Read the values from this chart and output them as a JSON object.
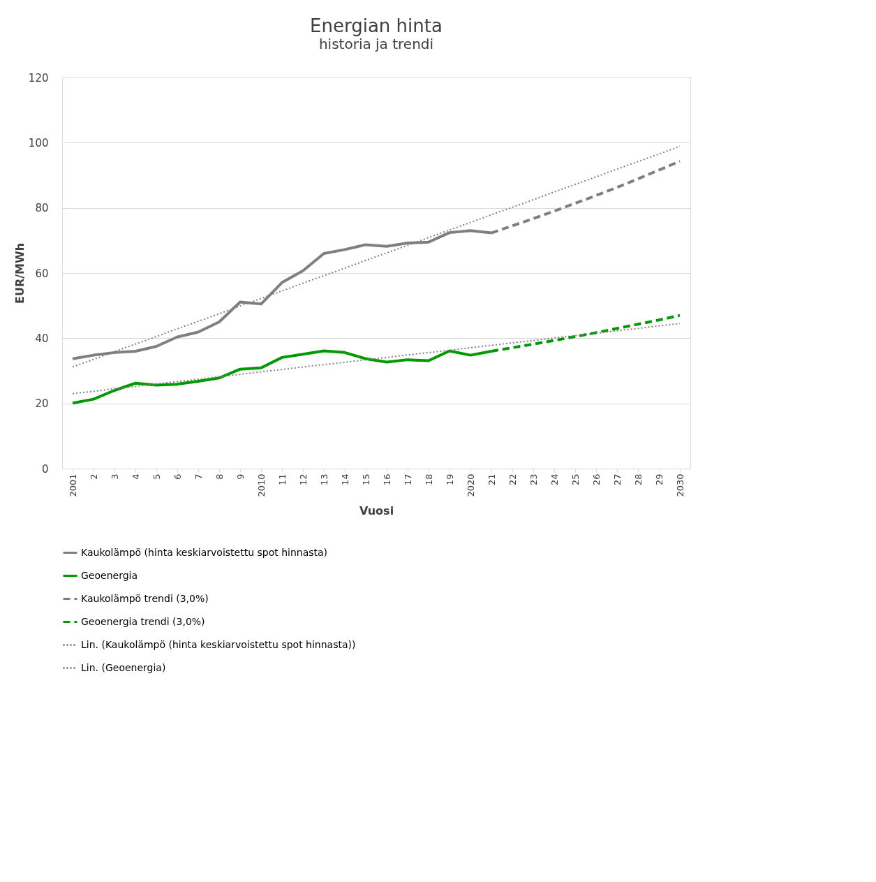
{
  "chart_data": {
    "type": "line",
    "title": "Energian hinta",
    "subtitle": "historia ja trendi",
    "xlabel": "Vuosi",
    "ylabel": "EUR/MWh",
    "categories": [
      "2001",
      "2",
      "3",
      "4",
      "5",
      "6",
      "7",
      "8",
      "9",
      "2010",
      "11",
      "12",
      "13",
      "14",
      "15",
      "16",
      "17",
      "18",
      "19",
      "2020",
      "21",
      "22",
      "23",
      "24",
      "25",
      "26",
      "27",
      "28",
      "29",
      "2030"
    ],
    "ylim": [
      0,
      120
    ],
    "yticks": [
      0,
      20,
      40,
      60,
      80,
      100,
      120
    ],
    "grid": "y",
    "legend": "bottom",
    "marker": "none",
    "series": [
      {
        "name": "Kaukolämpö (hinta keskiarvoistettu spot hinnasta)",
        "color": "#7f7f7f",
        "line_style": "solid",
        "values": [
          33.7,
          34.8,
          35.6,
          36.0,
          37.5,
          40.4,
          41.9,
          45.0,
          51.1,
          50.5,
          57.1,
          60.7,
          66.0,
          67.2,
          68.7,
          68.2,
          69.2,
          69.5,
          72.4,
          73.0,
          72.3,
          null,
          null,
          null,
          null,
          null,
          null,
          null,
          null,
          null
        ]
      },
      {
        "name": "Geoenergia",
        "color": "#009900",
        "line_style": "solid",
        "values": [
          20.1,
          21.3,
          24.0,
          26.2,
          25.6,
          25.9,
          26.8,
          27.8,
          30.5,
          30.9,
          34.1,
          35.1,
          36.1,
          35.6,
          33.7,
          32.7,
          33.4,
          33.1,
          36.1,
          34.8,
          36.0,
          null,
          null,
          null,
          null,
          null,
          null,
          null,
          null,
          null
        ]
      },
      {
        "name": "Kaukolämpö trendi (3,0%)",
        "color": "#7f7f7f",
        "line_style": "dashed",
        "values": [
          null,
          null,
          null,
          null,
          null,
          null,
          null,
          null,
          null,
          null,
          null,
          null,
          null,
          null,
          null,
          null,
          null,
          null,
          null,
          null,
          72.3,
          74.5,
          76.7,
          79.0,
          81.4,
          83.8,
          86.3,
          88.9,
          91.6,
          94.3
        ]
      },
      {
        "name": "Geoenergia trendi (3,0%)",
        "color": "#009900",
        "line_style": "dashed",
        "values": [
          null,
          null,
          null,
          null,
          null,
          null,
          null,
          null,
          null,
          null,
          null,
          null,
          null,
          null,
          null,
          null,
          null,
          null,
          null,
          null,
          36.0,
          37.1,
          38.2,
          39.3,
          40.5,
          41.7,
          43.0,
          44.3,
          45.6,
          47.0
        ]
      },
      {
        "name": "Lin. (Kaukolämpö (hinta keskiarvoistettu spot hinnasta))",
        "color": "#808080",
        "line_style": "dotted",
        "values": [
          31.2,
          33.5,
          35.9,
          38.2,
          40.5,
          42.9,
          45.2,
          47.5,
          49.9,
          52.2,
          54.5,
          56.9,
          59.2,
          61.5,
          63.9,
          66.2,
          68.5,
          70.9,
          73.2,
          75.5,
          77.9,
          80.2,
          82.5,
          84.9,
          87.2,
          89.5,
          91.9,
          94.2,
          96.5,
          98.9
        ]
      },
      {
        "name": "Lin. (Geoenergia)",
        "color": "#808080",
        "line_style": "dotted",
        "values": [
          23.0,
          23.7,
          24.5,
          25.2,
          26.0,
          26.7,
          27.4,
          28.2,
          28.9,
          29.7,
          30.4,
          31.2,
          31.9,
          32.6,
          33.4,
          34.1,
          34.9,
          35.6,
          36.3,
          37.1,
          37.8,
          38.6,
          39.3,
          40.1,
          40.8,
          41.5,
          42.3,
          43.0,
          43.8,
          44.5
        ]
      }
    ]
  }
}
